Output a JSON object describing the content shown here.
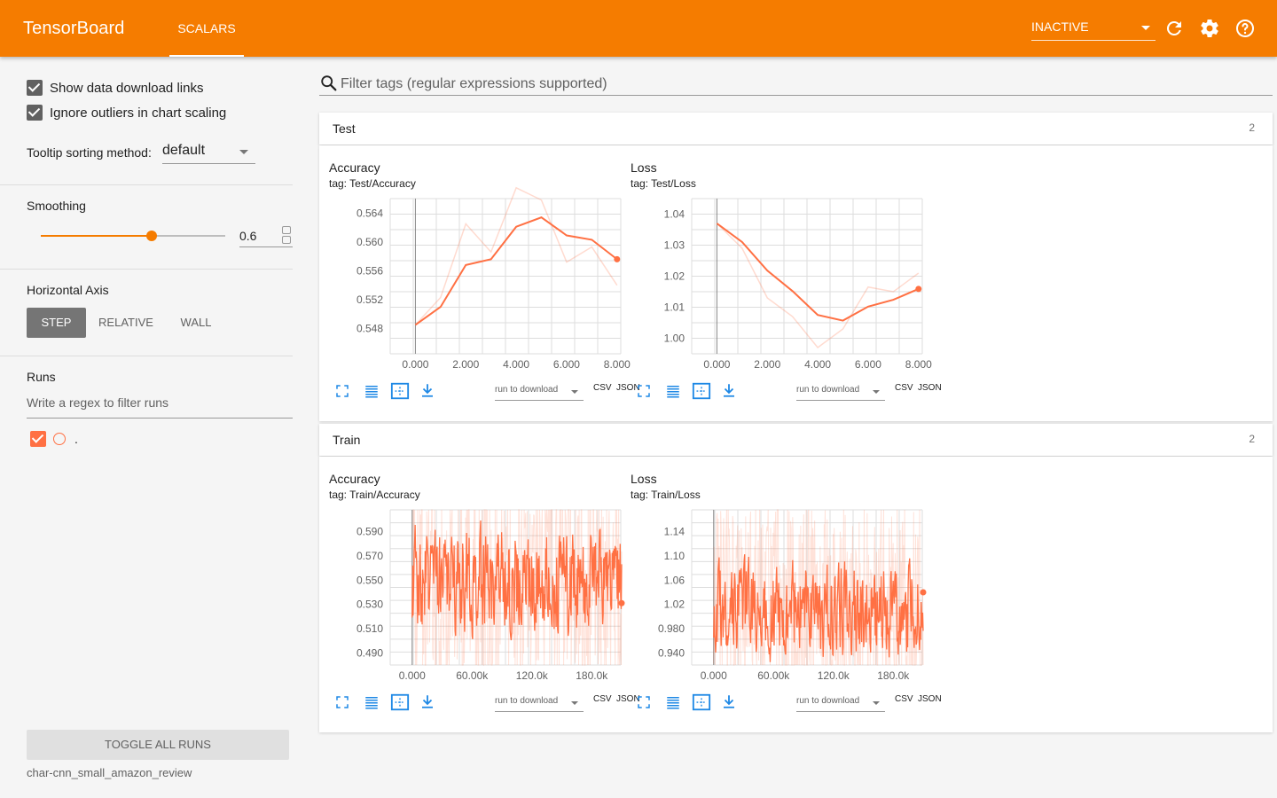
{
  "app": {
    "brand": "TensorBoard",
    "tabs": [
      {
        "label": "SCALARS"
      }
    ],
    "mode": "INACTIVE",
    "icons": [
      "refresh-icon",
      "gear-icon",
      "help-icon"
    ],
    "accent": "#f57c00"
  },
  "sidebar": {
    "show_links": "Show data download links",
    "ignore_outliers": "Ignore outliers in chart scaling",
    "tooltip_label": "Tooltip sorting method:",
    "tooltip_value": "default",
    "smoothing_label": "Smoothing",
    "smoothing_value": "0.6",
    "axis_label": "Horizontal Axis",
    "axis_options": [
      "STEP",
      "RELATIVE",
      "WALL"
    ],
    "runs_label": "Runs",
    "runs_placeholder": "Write a regex to filter runs",
    "run_name": ".",
    "toggle_label": "TOGGLE ALL RUNS",
    "logdir": "char-cnn_small_amazon_review"
  },
  "main": {
    "filter_placeholder": "Filter tags (regular expressions supported)",
    "download_placeholder": "run to download",
    "csv": "CSV",
    "json": "JSON",
    "categories": [
      {
        "name": "Test",
        "count": "2",
        "cards": [
          {
            "title": "Accuracy",
            "tag": "tag: Test/Accuracy"
          },
          {
            "title": "Loss",
            "tag": "tag: Test/Loss"
          }
        ]
      },
      {
        "name": "Train",
        "count": "2",
        "cards": [
          {
            "title": "Accuracy",
            "tag": "tag: Train/Accuracy"
          },
          {
            "title": "Loss",
            "tag": "tag: Train/Loss"
          }
        ]
      }
    ]
  },
  "chart_data": [
    {
      "type": "line",
      "tag": "tag: Test/Accuracy",
      "color": "#ff7043",
      "x": [
        0,
        1,
        2,
        3,
        4,
        5,
        6,
        7,
        8
      ],
      "xticks": [
        "0.000",
        "2.000",
        "4.000",
        "6.000",
        "8.000"
      ],
      "yticks": [
        "0.548",
        "0.552",
        "0.556",
        "0.560",
        "0.564"
      ],
      "xlim": [
        -1,
        8.5
      ],
      "ylim": [
        0.5445,
        0.566
      ],
      "series": [
        {
          "kind": "raw",
          "values": [
            0.5485,
            0.5523,
            0.5625,
            0.5586,
            0.5675,
            0.5658,
            0.5572,
            0.5593,
            0.554
          ]
        },
        {
          "kind": "smoothed",
          "values": [
            0.5485,
            0.551,
            0.5568,
            0.5576,
            0.5621,
            0.5634,
            0.5609,
            0.5603,
            0.5576
          ]
        }
      ]
    },
    {
      "type": "line",
      "tag": "tag: Test/Loss",
      "color": "#ff7043",
      "x": [
        0,
        1,
        2,
        3,
        4,
        5,
        6,
        7,
        8
      ],
      "xticks": [
        "0.000",
        "2.000",
        "4.000",
        "6.000",
        "8.000"
      ],
      "yticks": [
        "1.00",
        "1.01",
        "1.02",
        "1.03",
        "1.04"
      ],
      "xlim": [
        -1,
        8.5
      ],
      "ylim": [
        0.995,
        1.045
      ],
      "series": [
        {
          "kind": "raw",
          "values": [
            1.037,
            1.029,
            1.013,
            1.007,
            0.997,
            1.003,
            1.0165,
            1.015,
            1.021
          ]
        },
        {
          "kind": "smoothed",
          "values": [
            1.037,
            1.031,
            1.0218,
            1.0152,
            1.0075,
            1.0057,
            1.0102,
            1.0124,
            1.0159
          ]
        }
      ]
    },
    {
      "type": "line",
      "tag": "tag: Train/Accuracy",
      "color": "#ff7043",
      "x_range": [
        0,
        210000
      ],
      "xticks": [
        "0.000",
        "60.00k",
        "120.0k",
        "180.0k"
      ],
      "yticks": [
        "0.490",
        "0.510",
        "0.530",
        "0.550",
        "0.570",
        "0.590"
      ],
      "xlim": [
        -22000,
        218000
      ],
      "ylim": [
        0.48,
        0.608
      ],
      "smoothed_level": 0.55,
      "smoothed_range": [
        0.485,
        0.608
      ],
      "last_value": 0.531
    },
    {
      "type": "line",
      "tag": "tag: Train/Loss",
      "color": "#ff7043",
      "x_range": [
        0,
        210000
      ],
      "xticks": [
        "0.000",
        "60.00k",
        "120.0k",
        "180.0k"
      ],
      "yticks": [
        "0.940",
        "0.980",
        "1.02",
        "1.06",
        "1.10",
        "1.14"
      ],
      "xlim": [
        -22000,
        218000
      ],
      "ylim": [
        0.92,
        1.176
      ],
      "smoothed_level": 1.01,
      "smoothed_range": [
        0.955,
        1.176
      ],
      "last_value": 1.04
    }
  ]
}
